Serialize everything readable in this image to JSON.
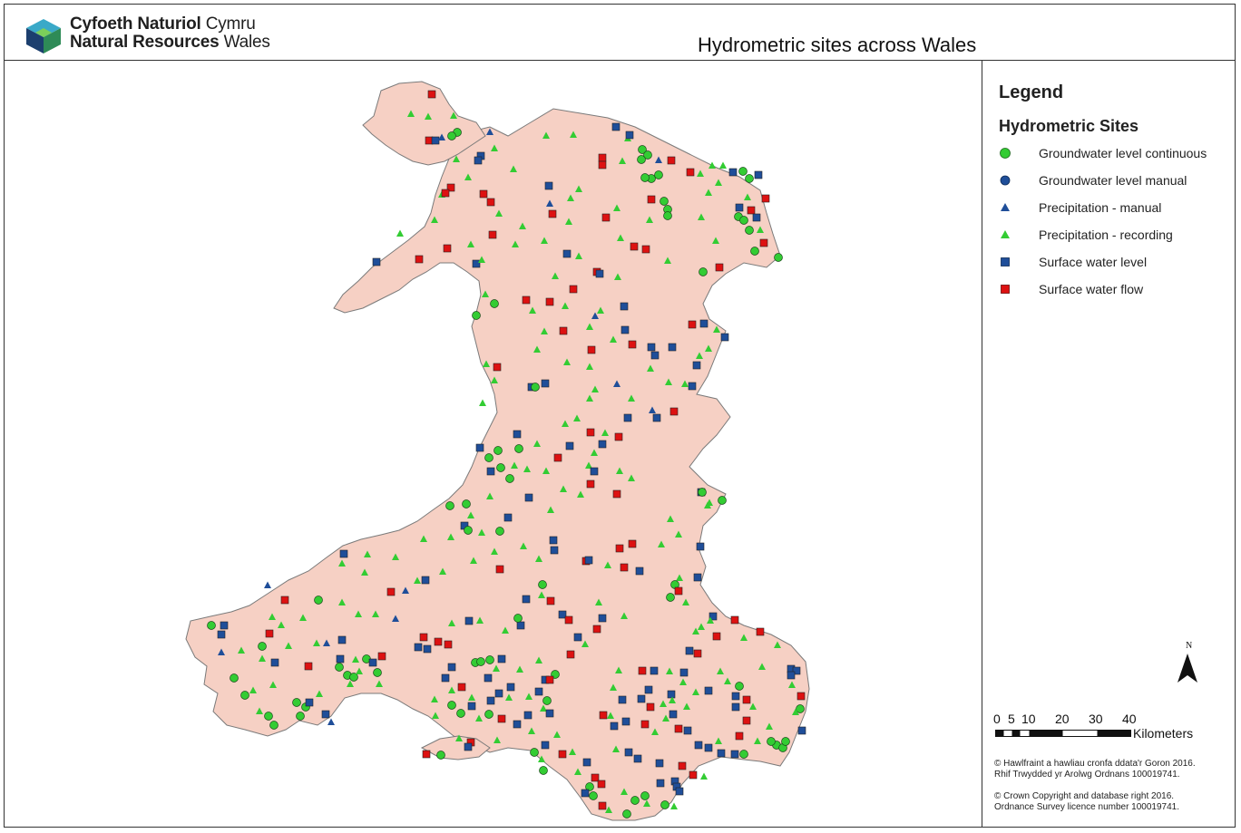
{
  "header": {
    "org_line1_bold": "Cyfoeth Naturiol",
    "org_line1_light": "Cymru",
    "org_line2_bold": "Natural Resources",
    "org_line2_light": "Wales",
    "map_title": "Hydrometric sites across Wales"
  },
  "legend": {
    "title": "Legend",
    "subtitle": "Hydrometric Sites",
    "items": [
      {
        "label": "Groundwater level continuous",
        "shape": "circle",
        "color": "#33cc33"
      },
      {
        "label": "Groundwater level manual",
        "shape": "circle",
        "color": "#1f4e99"
      },
      {
        "label": "Precipitation - manual",
        "shape": "triangle",
        "color": "#1f4e99"
      },
      {
        "label": "Precipitation - recording",
        "shape": "triangle",
        "color": "#33cc33"
      },
      {
        "label": "Surface water level",
        "shape": "square",
        "color": "#1f4e99"
      },
      {
        "label": "Surface water flow",
        "shape": "square",
        "color": "#dd1111"
      }
    ]
  },
  "scale": {
    "ticks": [
      "0",
      "5",
      "10",
      "20",
      "30",
      "40"
    ],
    "unit": "Kilometers"
  },
  "north_label": "N",
  "credits": {
    "welsh_line1": "© Hawlfraint a hawliau cronfa ddata'r Goron 2016.",
    "welsh_line2": "Rhif Trwydded yr Arolwg Ordnans 100019741.",
    "english_line1": "© Crown Copyright and database right 2016.",
    "english_line2": "Ordnance Survey licence number 100019741."
  },
  "colors": {
    "land": "#f6d0c4",
    "coast": "#7a7a7a",
    "gw_continuous": "#33cc33",
    "blue": "#1f4e99",
    "red": "#dd1111",
    "precip_recording": "#33cc33"
  }
}
